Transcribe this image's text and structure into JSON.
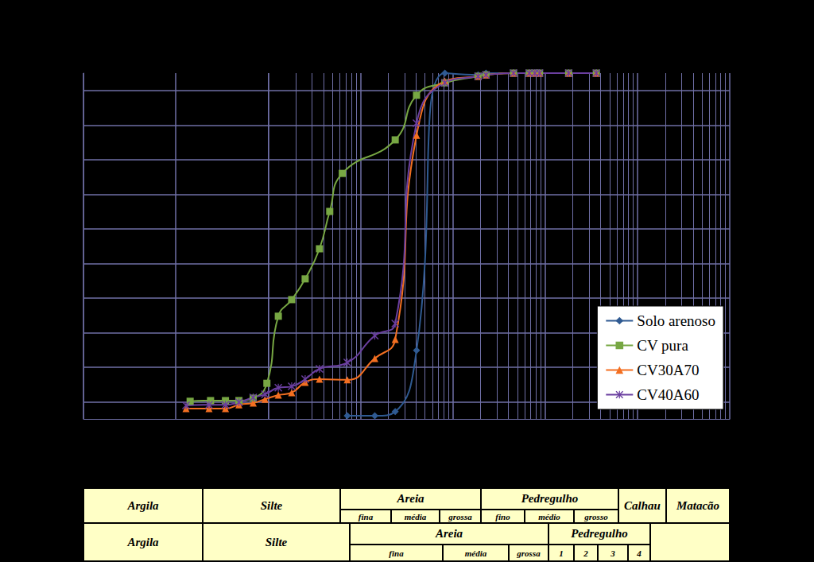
{
  "chart_data": {
    "type": "line",
    "log": "x",
    "grid": true,
    "tick_labels": false,
    "legend": "lower right",
    "xlim": [
      0.0001,
      1000
    ],
    "xticks": [
      0.0001,
      0.001,
      0.01,
      0.1,
      1,
      10,
      100,
      1000
    ],
    "ylim": [
      0,
      100
    ],
    "yticks": [
      5,
      15,
      25,
      35,
      45,
      55,
      65,
      75,
      85,
      95
    ],
    "series": [
      {
        "name": "Solo arenoso",
        "color": "#2f5a92",
        "marker": "diamond",
        "line_style": "solid",
        "x": [
          0.072,
          0.143,
          0.238,
          0.405,
          0.821,
          1.88,
          2.29,
          4.55,
          6.74,
          7.75,
          8.71,
          18.0,
          35.9
        ],
        "values": [
          0.9,
          0.9,
          2.1,
          19.8,
          100,
          99.5,
          100,
          100,
          100,
          100,
          100,
          100,
          100
        ]
      },
      {
        "name": "CV pura",
        "color": "#77a743",
        "marker": "square",
        "line_style": "solid",
        "x": [
          0.00143,
          0.00238,
          0.00345,
          0.00483,
          0.00689,
          0.0097,
          0.0129,
          0.018,
          0.0252,
          0.036,
          0.0465,
          0.0636,
          0.238,
          0.405,
          0.821,
          1.88,
          2.29,
          4.55,
          6.74,
          7.75,
          8.71,
          18.0,
          35.9
        ],
        "values": [
          5.1,
          5.3,
          5.3,
          5.3,
          6.0,
          10.3,
          29.7,
          34.5,
          40.5,
          49.2,
          60,
          71,
          80.7,
          93.6,
          97.2,
          99.1,
          99.5,
          100,
          100,
          100,
          100,
          100,
          100
        ]
      },
      {
        "name": "CV30A70",
        "color": "#f36f21",
        "marker": "triangle",
        "line_style": "solid",
        "x": [
          0.00129,
          0.00229,
          0.00345,
          0.00483,
          0.00689,
          0.00925,
          0.0129,
          0.018,
          0.0252,
          0.036,
          0.072,
          0.143,
          0.238,
          0.405,
          0.821,
          1.88,
          2.29,
          4.55,
          6.74,
          7.75,
          8.71,
          18.0,
          35.9
        ],
        "values": [
          3.0,
          3.0,
          3.0,
          4.1,
          4.6,
          5.7,
          6.9,
          7.6,
          10.6,
          11.5,
          11.3,
          17.5,
          23.0,
          82,
          97.7,
          99.1,
          99.5,
          100,
          100,
          100,
          100,
          100,
          100
        ]
      },
      {
        "name": "CV40A60",
        "color": "#6b3fa0",
        "marker": "star",
        "line_style": "solid",
        "x": [
          0.00129,
          0.00229,
          0.00345,
          0.00483,
          0.00689,
          0.00925,
          0.0129,
          0.018,
          0.0252,
          0.036,
          0.072,
          0.143,
          0.238,
          0.405,
          0.821,
          1.88,
          2.29,
          4.55,
          6.74,
          7.75,
          8.71,
          18.0,
          35.9
        ],
        "values": [
          3.9,
          4.1,
          4.1,
          4.8,
          6.2,
          7.1,
          9.0,
          9.4,
          11.5,
          14.5,
          16.3,
          24.1,
          27.6,
          85.5,
          97.2,
          99.1,
          99.5,
          100,
          100,
          100,
          100,
          100,
          100
        ]
      }
    ]
  },
  "table": {
    "rows": [
      [
        {
          "text": "Argila"
        },
        {
          "text": "Silte"
        },
        {
          "text": "Areia",
          "sub": [
            "fina",
            "média",
            "grossa"
          ]
        },
        {
          "text": "Pedregulho",
          "sub": [
            "fino",
            "médio",
            "grosso"
          ]
        },
        {
          "text": "Calhau"
        },
        {
          "text": "Matacão"
        }
      ],
      [
        {
          "text": "Argila"
        },
        {
          "text": "Silte"
        },
        {
          "text": "Areia",
          "sub": [
            "fina",
            "média",
            "grossa"
          ]
        },
        {
          "text": "Pedregulho",
          "sub": [
            "1",
            "2",
            "3",
            "4"
          ]
        }
      ]
    ]
  }
}
